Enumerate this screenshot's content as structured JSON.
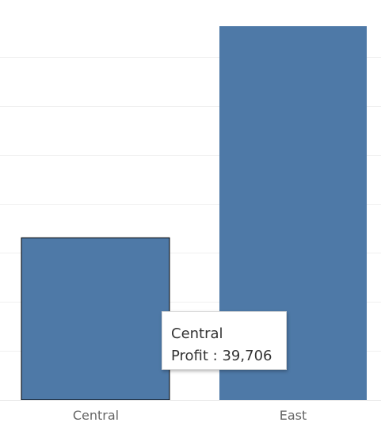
{
  "chart_data": {
    "type": "bar",
    "title": "",
    "xlabel": "",
    "ylabel": "",
    "categories": [
      "Central",
      "East"
    ],
    "series": [
      {
        "values": [
          39706,
          91523
        ]
      }
    ],
    "ylim": [
      0,
      96000
    ],
    "grid": true,
    "bar_color": "#4e79a7",
    "selected_category": "Central"
  },
  "tooltip": {
    "category": "Central",
    "measure_label": "Profit :",
    "measure_value": "39,706"
  }
}
